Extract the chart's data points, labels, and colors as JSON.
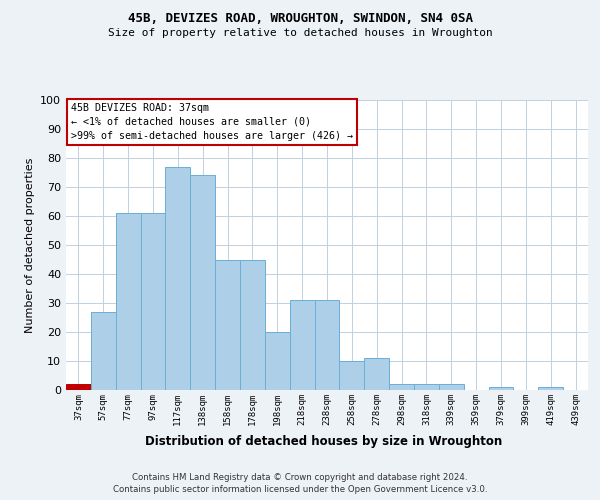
{
  "title1": "45B, DEVIZES ROAD, WROUGHTON, SWINDON, SN4 0SA",
  "title2": "Size of property relative to detached houses in Wroughton",
  "xlabel": "Distribution of detached houses by size in Wroughton",
  "ylabel": "Number of detached properties",
  "categories": [
    "37sqm",
    "57sqm",
    "77sqm",
    "97sqm",
    "117sqm",
    "138sqm",
    "158sqm",
    "178sqm",
    "198sqm",
    "218sqm",
    "238sqm",
    "258sqm",
    "278sqm",
    "298sqm",
    "318sqm",
    "339sqm",
    "359sqm",
    "379sqm",
    "399sqm",
    "419sqm",
    "439sqm"
  ],
  "bar_heights": [
    2,
    27,
    61,
    61,
    77,
    74,
    45,
    45,
    20,
    31,
    31,
    10,
    11,
    2,
    2,
    2,
    0,
    1,
    0,
    1,
    0
  ],
  "bar_color": "#aecfe8",
  "bar_edge_color": "#6aaed6",
  "highlight_bar_index": 0,
  "highlight_bar_color": "#c00000",
  "annotation_line1": "45B DEVIZES ROAD: 37sqm",
  "annotation_line2": "← <1% of detached houses are smaller (0)",
  "annotation_line3": ">99% of semi-detached houses are larger (426) →",
  "annotation_box_color": "#c00000",
  "ylim": [
    0,
    100
  ],
  "yticks": [
    0,
    10,
    20,
    30,
    40,
    50,
    60,
    70,
    80,
    90,
    100
  ],
  "footer1": "Contains HM Land Registry data © Crown copyright and database right 2024.",
  "footer2": "Contains public sector information licensed under the Open Government Licence v3.0.",
  "bg_color": "#edf2f7",
  "plot_bg_color": "#ffffff",
  "grid_color": "#c0d0e0"
}
